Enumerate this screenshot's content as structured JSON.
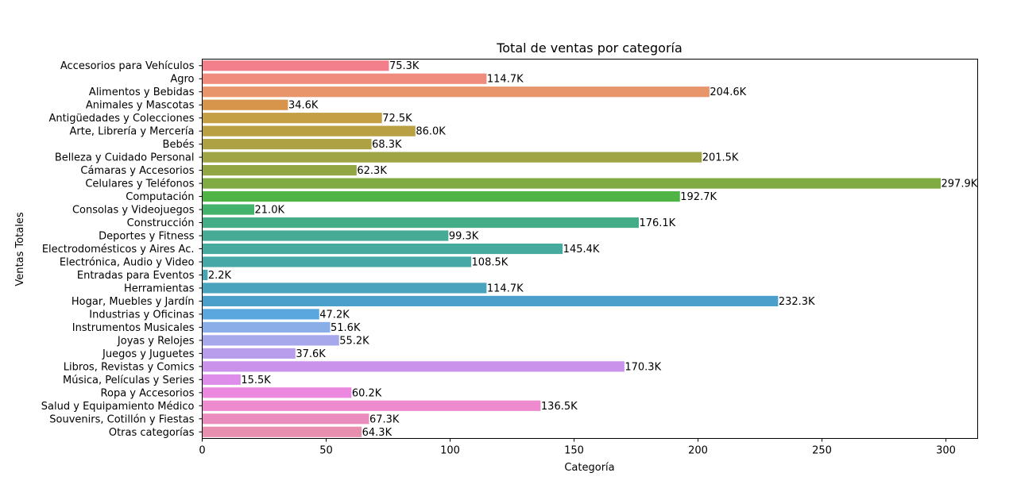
{
  "chart_data": {
    "type": "bar",
    "orientation": "horizontal",
    "title": "Total de ventas por categoría",
    "xlabel": "Categoría",
    "ylabel": "Ventas Totales",
    "xlim": [
      0,
      312.8
    ],
    "xticks": [
      0,
      50,
      100,
      150,
      200,
      250,
      300
    ],
    "grid": false,
    "categories": [
      "Accesorios para Vehículos",
      "Agro",
      "Alimentos y Bebidas",
      "Animales y Mascotas",
      "Antigüedades y Colecciones",
      "Arte, Librería y Mercería",
      "Bebés",
      "Belleza y Cuidado Personal",
      "Cámaras y Accesorios",
      "Celulares y Teléfonos",
      "Computación",
      "Consolas y Videojuegos",
      "Construcción",
      "Deportes y Fitness",
      "Electrodomésticos y Aires Ac.",
      "Electrónica, Audio y Video",
      "Entradas para Eventos",
      "Herramientas",
      "Hogar, Muebles y Jardín",
      "Industrias y Oficinas",
      "Instrumentos Musicales",
      "Joyas y Relojes",
      "Juegos y Juguetes",
      "Libros, Revistas y Comics",
      "Música, Películas y Series",
      "Ropa y Accesorios",
      "Salud y Equipamiento Médico",
      "Souvenirs, Cotillón y Fiestas",
      "Otras categorías"
    ],
    "values": [
      75.3,
      114.7,
      204.6,
      34.6,
      72.5,
      86.0,
      68.3,
      201.5,
      62.3,
      297.9,
      192.7,
      21.0,
      176.1,
      99.3,
      145.4,
      108.5,
      2.2,
      114.7,
      232.3,
      47.2,
      51.6,
      55.2,
      37.6,
      170.3,
      15.5,
      60.2,
      136.5,
      67.3,
      64.3
    ],
    "data_labels": [
      "75.3K",
      "114.7K",
      "204.6K",
      "34.6K",
      "72.5K",
      "86.0K",
      "68.3K",
      "201.5K",
      "62.3K",
      "297.9K",
      "192.7K",
      "21.0K",
      "176.1K",
      "99.3K",
      "145.4K",
      "108.5K",
      "2.2K",
      "114.7K",
      "232.3K",
      "47.2K",
      "51.6K",
      "55.2K",
      "37.6K",
      "170.3K",
      "15.5K",
      "60.2K",
      "136.5K",
      "67.3K",
      "64.3K"
    ],
    "colors": [
      "#f37f8b",
      "#ef8c7e",
      "#e8956c",
      "#d6954a",
      "#c59f43",
      "#b8a043",
      "#aca243",
      "#9fa444",
      "#92a743",
      "#7fab42",
      "#4fb445",
      "#43b26c",
      "#44ad87",
      "#45ab94",
      "#46aa9e",
      "#47a8a8",
      "#48a6b2",
      "#49a3bd",
      "#4ba0cb",
      "#5aa6df",
      "#8aaee8",
      "#a7a7ec",
      "#b99ded",
      "#cb92ec",
      "#de8deb",
      "#ec88e0",
      "#ee8bcf",
      "#ea8cbe",
      "#e88eae"
    ]
  }
}
